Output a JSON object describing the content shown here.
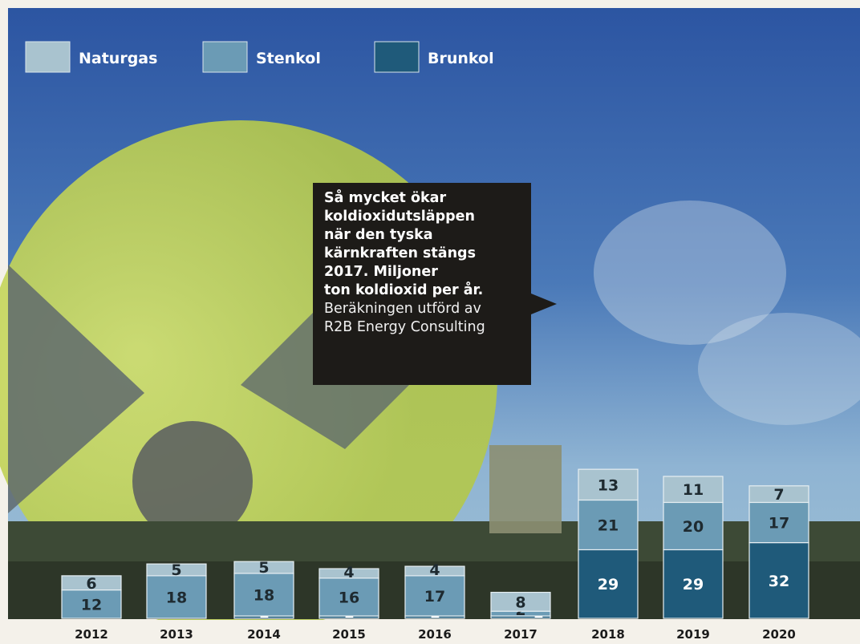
{
  "colors": {
    "naturgas": "#a9c3cf",
    "stenkol": "#6b9bb5",
    "brunkol": "#1f5a7a",
    "label_dark": "#1e2a30",
    "label_light": "#ffffff"
  },
  "legend": [
    {
      "key": "naturgas",
      "label": "Naturgas"
    },
    {
      "key": "stenkol",
      "label": "Stenkol"
    },
    {
      "key": "brunkol",
      "label": "Brunkol"
    }
  ],
  "callout": {
    "bold_lines": [
      "Så mycket ökar",
      "koldioxidutsläppen",
      "när den tyska",
      "kärnkraften stängs",
      "2017. Miljoner",
      "ton koldioxid per år."
    ],
    "normal_lines": [
      "Beräkningen utförd av",
      "R2B Energy Consulting"
    ]
  },
  "chart_data": {
    "type": "bar",
    "stacked": true,
    "categories": [
      "2012",
      "2013",
      "2014",
      "2015",
      "2016",
      "2017",
      "2018",
      "2019",
      "2020"
    ],
    "series": [
      {
        "name": "Brunkol",
        "values": [
          0,
          0,
          1,
          1,
          1,
          1,
          29,
          29,
          32
        ]
      },
      {
        "name": "Stenkol",
        "values": [
          12,
          18,
          18,
          16,
          17,
          2,
          21,
          20,
          17
        ]
      },
      {
        "name": "Naturgas",
        "values": [
          6,
          5,
          5,
          4,
          4,
          8,
          13,
          11,
          7
        ]
      }
    ],
    "legend_position": "top-left"
  }
}
